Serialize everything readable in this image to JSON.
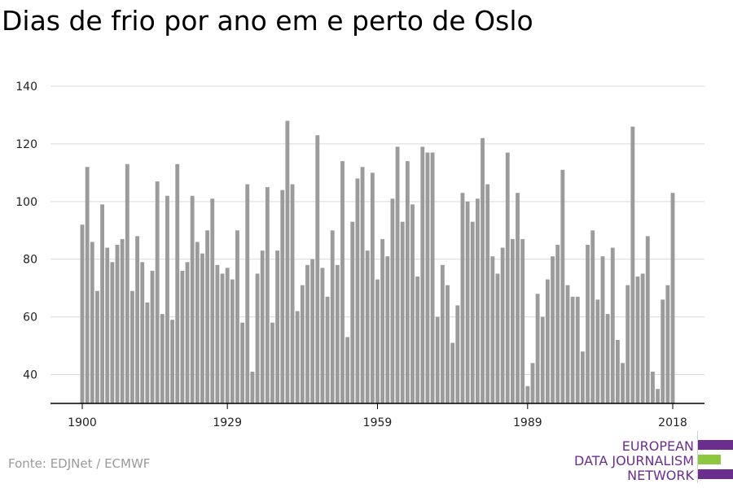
{
  "title": "Dias de frio por ano em e perto de Oslo",
  "source": "Fonte: EDJNet / ECMWF",
  "logo": {
    "lines": [
      "EUROPEAN",
      "DATA JOURNALISM",
      "NETWORK"
    ],
    "colors": {
      "purple": "#6b2d8e",
      "green": "#8dc63f"
    }
  },
  "colors": {
    "bar": "#9b9b9b",
    "grid": "#d9d9d9",
    "axis": "#000000"
  },
  "chart_data": {
    "type": "bar",
    "title": "Dias de frio por ano em e perto de Oslo",
    "xlabel": "",
    "ylabel": "",
    "ylim": [
      30,
      140
    ],
    "yticks": [
      40,
      60,
      80,
      100,
      120,
      140
    ],
    "xticks": [
      1900,
      1929,
      1959,
      1989,
      2018
    ],
    "grid": true,
    "x_start": 1900,
    "x_end": 2018,
    "values": [
      92,
      112,
      86,
      69,
      99,
      84,
      79,
      85,
      87,
      113,
      69,
      88,
      79,
      65,
      76,
      107,
      61,
      102,
      59,
      113,
      76,
      79,
      102,
      86,
      82,
      90,
      101,
      78,
      75,
      77,
      73,
      90,
      58,
      106,
      41,
      75,
      83,
      105,
      58,
      83,
      104,
      128,
      106,
      62,
      71,
      78,
      80,
      123,
      77,
      67,
      90,
      78,
      114,
      53,
      93,
      108,
      112,
      83,
      110,
      73,
      87,
      81,
      101,
      119,
      93,
      114,
      99,
      74,
      119,
      117,
      117,
      60,
      78,
      71,
      51,
      64,
      103,
      100,
      93,
      101,
      122,
      106,
      81,
      75,
      84,
      117,
      87,
      103,
      87,
      36,
      44,
      68,
      60,
      73,
      81,
      85,
      111,
      71,
      67,
      67,
      48,
      85,
      90,
      66,
      81,
      61,
      84,
      52,
      44,
      71,
      126,
      74,
      75,
      88,
      41,
      35,
      66,
      71,
      103
    ]
  }
}
